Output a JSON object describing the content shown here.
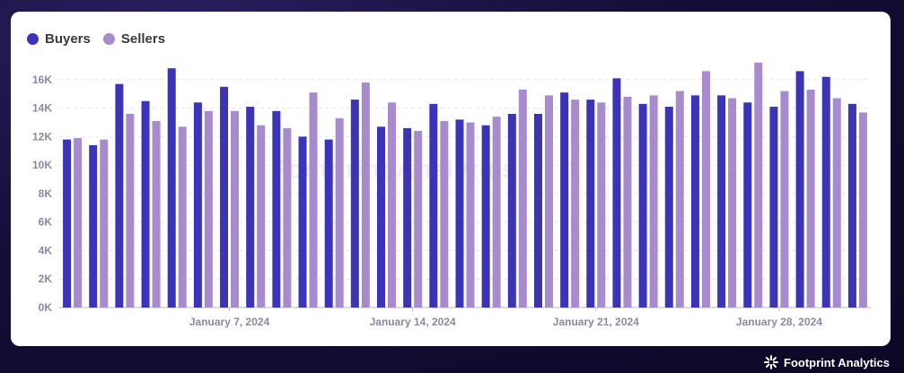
{
  "colors": {
    "buyers": "#3b34b8",
    "sellers": "#a88bcc",
    "grid": "#e6e6ee",
    "axis_text": "#8a8aa0"
  },
  "legend": [
    {
      "label": "Buyers"
    },
    {
      "label": "Sellers"
    }
  ],
  "watermark": "Footprint Analytics",
  "brand": {
    "name": "Footprint Analytics",
    "icon": "sparkle-icon"
  },
  "chart_data": {
    "type": "bar",
    "title": "",
    "xlabel": "",
    "ylabel": "",
    "ylim": [
      0,
      17000
    ],
    "yticks": [
      0,
      2000,
      4000,
      6000,
      8000,
      10000,
      12000,
      14000,
      16000
    ],
    "ytick_labels": [
      "0K",
      "2K",
      "4K",
      "6K",
      "8K",
      "10K",
      "12K",
      "14K",
      "16K"
    ],
    "x": [
      "2024-01-01",
      "2024-01-02",
      "2024-01-03",
      "2024-01-04",
      "2024-01-05",
      "2024-01-06",
      "2024-01-07",
      "2024-01-08",
      "2024-01-09",
      "2024-01-10",
      "2024-01-11",
      "2024-01-12",
      "2024-01-13",
      "2024-01-14",
      "2024-01-15",
      "2024-01-16",
      "2024-01-17",
      "2024-01-18",
      "2024-01-19",
      "2024-01-20",
      "2024-01-21",
      "2024-01-22",
      "2024-01-23",
      "2024-01-24",
      "2024-01-25",
      "2024-01-26",
      "2024-01-27",
      "2024-01-28",
      "2024-01-29",
      "2024-01-30",
      "2024-01-31"
    ],
    "xtick_labels": [
      {
        "date": "2024-01-07",
        "label": "January 7, 2024"
      },
      {
        "date": "2024-01-14",
        "label": "January 14, 2024"
      },
      {
        "date": "2024-01-21",
        "label": "January 21, 2024"
      },
      {
        "date": "2024-01-28",
        "label": "January 28, 2024"
      }
    ],
    "grid": true,
    "legend_position": "top-left",
    "series": [
      {
        "name": "Buyers",
        "values": [
          11800,
          11400,
          15700,
          14500,
          16800,
          14400,
          15500,
          14100,
          13800,
          12000,
          11800,
          14600,
          12700,
          12600,
          14300,
          13200,
          12800,
          13600,
          13600,
          15100,
          14600,
          16100,
          14300,
          14100,
          14900,
          14900,
          14400,
          14100,
          16600,
          16200,
          14300
        ]
      },
      {
        "name": "Sellers",
        "values": [
          11900,
          11800,
          13600,
          13100,
          12700,
          13800,
          13800,
          12800,
          12600,
          15100,
          13300,
          15800,
          14400,
          12400,
          13100,
          13000,
          13400,
          15300,
          14900,
          14600,
          14400,
          14800,
          14900,
          15200,
          16600,
          14700,
          17200,
          15200,
          15300,
          14700,
          13700
        ]
      }
    ]
  }
}
